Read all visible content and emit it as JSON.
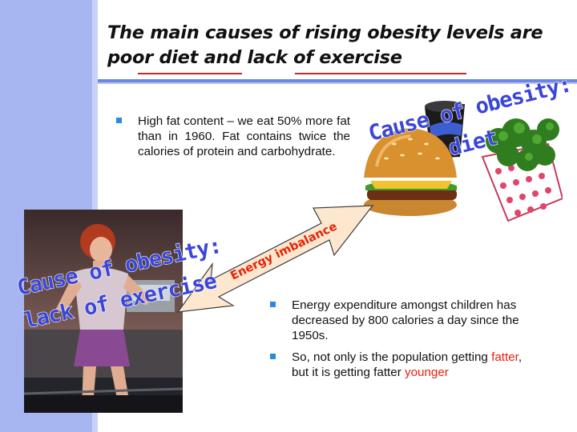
{
  "slide": {
    "title_line1": "The main causes of rising obesity levels are",
    "title_line2": "poor diet and lack of exercise",
    "bullets_top": [
      {
        "text": "High fat content – we eat 50% more fat than in 1960. Fat contains twice the calories of protein and carbohydrate."
      }
    ],
    "bullets_bottom": [
      {
        "text": "Energy expenditure amongst children has decreased by 800 calories a day since the 1950s."
      },
      {
        "text_a": "So, not only is the population getting ",
        "text_red1": "fatter",
        "text_b": ", but it is getting fatter ",
        "text_red2": "younger"
      }
    ],
    "diet_caption_line1": "Cause of obesity:",
    "diet_caption_line2": "diet",
    "exercise_caption_line1": "Cause of obesity:",
    "exercise_caption_line2": "lack of exercise",
    "arrow_label": "Energy imbalance"
  },
  "colors": {
    "sidebar": "#a7b5f0",
    "rule": "#6d86e6",
    "bullet": "#2a8ae0",
    "emphasis": "#e8210b",
    "arrow_fill": "#fde8cf",
    "arrow_label": "#e8210b",
    "caption": "#3b46d6"
  },
  "icons": [
    "square-bullet-icon",
    "double-headed-arrow-icon"
  ]
}
